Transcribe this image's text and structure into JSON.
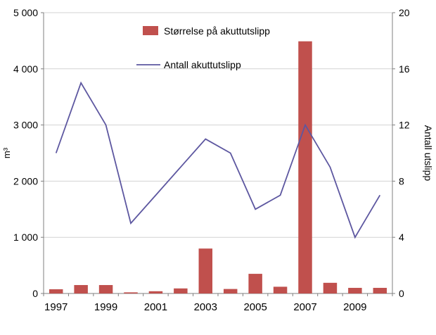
{
  "chart_data": {
    "type": "bar",
    "subtype": "bar+line combo",
    "x": [
      1997,
      1998,
      1999,
      2000,
      2001,
      2002,
      2003,
      2004,
      2005,
      2006,
      2007,
      2008,
      2009,
      2010
    ],
    "series": [
      {
        "name": "Størrelse på akuttutslipp",
        "type": "bar",
        "axis": "left",
        "color": "#c0504d",
        "values": [
          75,
          150,
          150,
          20,
          40,
          90,
          800,
          80,
          350,
          120,
          4490,
          190,
          100,
          100
        ]
      },
      {
        "name": "Antall akuttutslipp",
        "type": "line",
        "axis": "right",
        "color": "#5d57a0",
        "values": [
          10,
          15,
          12,
          5,
          7,
          9,
          11,
          10,
          6,
          7,
          12,
          9,
          4,
          7
        ]
      }
    ],
    "left_axis": {
      "label": "m³",
      "min": 0,
      "max": 5000,
      "step": 1000,
      "tick_labels": [
        "0",
        "1 000",
        "2 000",
        "3 000",
        "4 000",
        "5 000"
      ]
    },
    "right_axis": {
      "label": "Antall utslipp",
      "min": 0,
      "max": 20,
      "step": 4,
      "tick_labels": [
        "0",
        "4",
        "8",
        "12",
        "16",
        "20"
      ]
    },
    "x_tick_labels": [
      "1997",
      "1999",
      "2001",
      "2003",
      "2005",
      "2007",
      "2009"
    ],
    "grid": true,
    "legend_position": "top-center-inside",
    "title": ""
  },
  "colors": {
    "bar": "#c0504d",
    "line": "#5d57a0",
    "grid": "#d3d3d3",
    "axis": "#7f7f7f",
    "text": "#000000",
    "background": "#ffffff"
  }
}
